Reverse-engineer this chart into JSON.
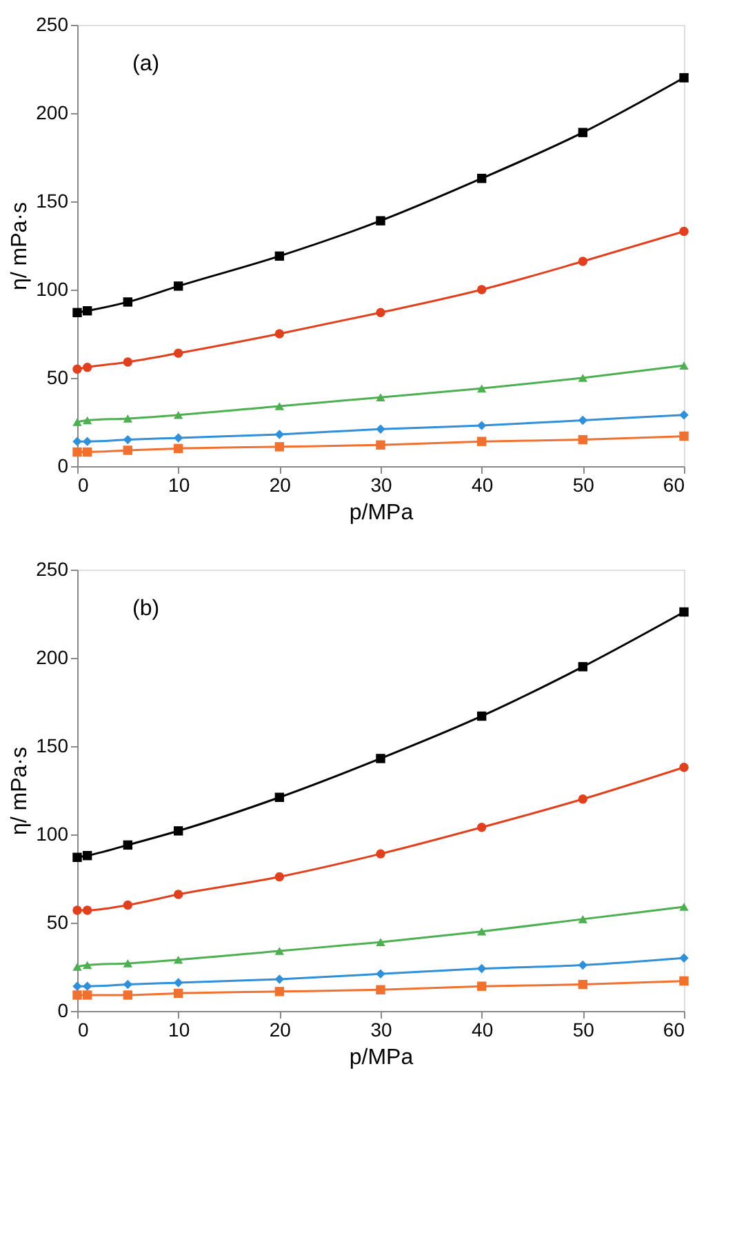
{
  "chart_data": [
    {
      "type": "line",
      "xlabel": "p/MPa",
      "ylabel": "η/ mPa·s",
      "annotations": [
        "(a)"
      ],
      "x": [
        0,
        1,
        5,
        10,
        20,
        30,
        40,
        50,
        60
      ],
      "xlim": [
        0,
        60
      ],
      "xticks": [
        0,
        10,
        20,
        30,
        40,
        50,
        60
      ],
      "ylim": [
        0,
        250
      ],
      "yticks": [
        0,
        50,
        100,
        150,
        200,
        250
      ],
      "grid": false,
      "series": [
        {
          "color": "#000000",
          "marker": "square",
          "values": [
            87,
            88,
            93,
            102,
            119,
            139,
            163,
            189,
            220
          ]
        },
        {
          "color": "#e0401e",
          "marker": "circle",
          "values": [
            55,
            56,
            59,
            64,
            75,
            87,
            100,
            116,
            133
          ]
        },
        {
          "color": "#4caf50",
          "marker": "triangle",
          "values": [
            25,
            26,
            27,
            29,
            34,
            39,
            44,
            50,
            57
          ]
        },
        {
          "color": "#2f8fd8",
          "marker": "diamond",
          "values": [
            14,
            14,
            15,
            16,
            18,
            21,
            23,
            26,
            29
          ]
        },
        {
          "color": "#f07030",
          "marker": "square",
          "values": [
            8,
            8,
            9,
            10,
            11,
            12,
            14,
            15,
            17
          ]
        }
      ]
    },
    {
      "type": "line",
      "xlabel": "p/MPa",
      "ylabel": "η/ mPa·s",
      "annotations": [
        "(b)"
      ],
      "x": [
        0,
        1,
        5,
        10,
        20,
        30,
        40,
        50,
        60
      ],
      "xlim": [
        0,
        60
      ],
      "xticks": [
        0,
        10,
        20,
        30,
        40,
        50,
        60
      ],
      "ylim": [
        0,
        250
      ],
      "yticks": [
        0,
        50,
        100,
        150,
        200,
        250
      ],
      "grid": false,
      "series": [
        {
          "color": "#000000",
          "marker": "square",
          "values": [
            87,
            88,
            94,
            102,
            121,
            143,
            167,
            195,
            226
          ]
        },
        {
          "color": "#e0401e",
          "marker": "circle",
          "values": [
            57,
            57,
            60,
            66,
            76,
            89,
            104,
            120,
            138
          ]
        },
        {
          "color": "#4caf50",
          "marker": "triangle",
          "values": [
            25,
            26,
            27,
            29,
            34,
            39,
            45,
            52,
            59
          ]
        },
        {
          "color": "#2f8fd8",
          "marker": "diamond",
          "values": [
            14,
            14,
            15,
            16,
            18,
            21,
            24,
            26,
            30
          ]
        },
        {
          "color": "#f07030",
          "marker": "square",
          "values": [
            9,
            9,
            9,
            10,
            11,
            12,
            14,
            15,
            17
          ]
        }
      ]
    }
  ]
}
